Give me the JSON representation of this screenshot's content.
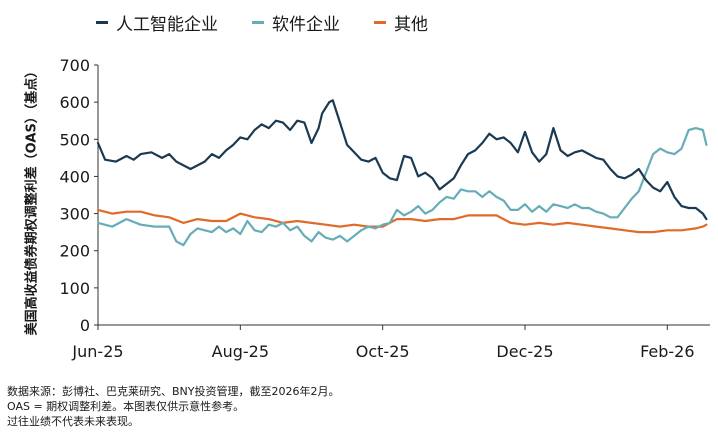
{
  "chart_data": {
    "type": "line",
    "ylabel": "美国高收益债券期权调整利差（OAS）（基点）",
    "ylim": [
      0,
      700
    ],
    "yticks": [
      0,
      100,
      200,
      300,
      400,
      500,
      600,
      700
    ],
    "xticks": [
      "Jun-25",
      "Aug-25",
      "Oct-25",
      "Dec-25",
      "Feb-26"
    ],
    "xtick_positions": [
      0,
      2,
      4,
      6,
      8
    ],
    "xlim": [
      0,
      8.6
    ],
    "grid": false,
    "legend_position": "top",
    "series": [
      {
        "name": "人工智能企业",
        "color": "#1b3a52",
        "x": [
          0,
          0.1,
          0.25,
          0.4,
          0.5,
          0.6,
          0.75,
          0.9,
          1.0,
          1.1,
          1.3,
          1.5,
          1.6,
          1.7,
          1.8,
          1.9,
          2.0,
          2.1,
          2.2,
          2.3,
          2.4,
          2.5,
          2.6,
          2.7,
          2.8,
          2.9,
          3.0,
          3.1,
          3.15,
          3.25,
          3.3,
          3.4,
          3.5,
          3.6,
          3.7,
          3.8,
          3.9,
          4.0,
          4.1,
          4.2,
          4.3,
          4.4,
          4.5,
          4.6,
          4.7,
          4.8,
          4.9,
          5.0,
          5.1,
          5.2,
          5.3,
          5.4,
          5.5,
          5.6,
          5.7,
          5.8,
          5.9,
          6.0,
          6.1,
          6.2,
          6.3,
          6.4,
          6.5,
          6.6,
          6.7,
          6.8,
          6.9,
          7.0,
          7.1,
          7.2,
          7.3,
          7.4,
          7.5,
          7.6,
          7.7,
          7.8,
          7.9,
          8.0,
          8.1,
          8.2,
          8.3,
          8.4,
          8.5,
          8.55
        ],
        "values": [
          490,
          445,
          440,
          455,
          445,
          460,
          465,
          450,
          460,
          440,
          420,
          440,
          460,
          450,
          470,
          485,
          505,
          500,
          525,
          540,
          530,
          550,
          545,
          525,
          550,
          545,
          490,
          530,
          570,
          600,
          605,
          545,
          485,
          465,
          445,
          440,
          450,
          410,
          395,
          390,
          455,
          450,
          400,
          410,
          395,
          365,
          380,
          395,
          430,
          460,
          470,
          490,
          515,
          500,
          505,
          490,
          465,
          520,
          465,
          440,
          460,
          530,
          470,
          455,
          465,
          470,
          460,
          450,
          445,
          420,
          400,
          395,
          405,
          420,
          390,
          370,
          360,
          385,
          345,
          320,
          315,
          315,
          300,
          285
        ]
      },
      {
        "name": "软件企业",
        "color": "#66adb8",
        "x": [
          0,
          0.2,
          0.4,
          0.6,
          0.8,
          1.0,
          1.1,
          1.2,
          1.3,
          1.4,
          1.5,
          1.6,
          1.7,
          1.8,
          1.9,
          2.0,
          2.1,
          2.2,
          2.3,
          2.4,
          2.5,
          2.6,
          2.7,
          2.8,
          2.9,
          3.0,
          3.1,
          3.2,
          3.3,
          3.4,
          3.5,
          3.6,
          3.7,
          3.8,
          3.9,
          4.0,
          4.1,
          4.2,
          4.3,
          4.4,
          4.5,
          4.6,
          4.7,
          4.8,
          4.9,
          5.0,
          5.1,
          5.2,
          5.3,
          5.4,
          5.5,
          5.6,
          5.7,
          5.8,
          5.9,
          6.0,
          6.1,
          6.2,
          6.3,
          6.4,
          6.5,
          6.6,
          6.7,
          6.8,
          6.9,
          7.0,
          7.1,
          7.2,
          7.3,
          7.4,
          7.5,
          7.6,
          7.7,
          7.8,
          7.9,
          8.0,
          8.1,
          8.2,
          8.3,
          8.4,
          8.5,
          8.55
        ],
        "values": [
          275,
          265,
          285,
          270,
          265,
          265,
          225,
          215,
          245,
          260,
          255,
          250,
          265,
          250,
          260,
          245,
          280,
          255,
          250,
          270,
          265,
          275,
          255,
          265,
          240,
          225,
          250,
          235,
          230,
          240,
          225,
          240,
          255,
          265,
          260,
          270,
          275,
          310,
          295,
          305,
          320,
          300,
          310,
          330,
          345,
          340,
          365,
          360,
          360,
          345,
          360,
          345,
          335,
          310,
          310,
          325,
          305,
          320,
          305,
          325,
          320,
          315,
          325,
          315,
          315,
          305,
          300,
          290,
          290,
          315,
          340,
          360,
          410,
          460,
          475,
          465,
          460,
          475,
          525,
          530,
          525,
          485
        ]
      },
      {
        "name": "其他",
        "color": "#e06a2a",
        "x": [
          0,
          0.2,
          0.4,
          0.6,
          0.8,
          1.0,
          1.2,
          1.4,
          1.6,
          1.8,
          2.0,
          2.2,
          2.4,
          2.6,
          2.8,
          3.0,
          3.2,
          3.4,
          3.6,
          3.8,
          4.0,
          4.2,
          4.4,
          4.6,
          4.8,
          5.0,
          5.2,
          5.4,
          5.6,
          5.8,
          6.0,
          6.2,
          6.4,
          6.6,
          6.8,
          7.0,
          7.2,
          7.4,
          7.6,
          7.8,
          8.0,
          8.2,
          8.4,
          8.5,
          8.55
        ],
        "values": [
          310,
          300,
          305,
          305,
          295,
          290,
          275,
          285,
          280,
          280,
          300,
          290,
          285,
          275,
          280,
          275,
          270,
          265,
          270,
          265,
          265,
          285,
          285,
          280,
          285,
          285,
          295,
          295,
          295,
          275,
          270,
          275,
          270,
          275,
          270,
          265,
          260,
          255,
          250,
          250,
          255,
          255,
          260,
          265,
          270
        ]
      }
    ]
  },
  "notes": {
    "line1": "数据来源：彭博社、巴克莱研究、BNY投资管理，截至2026年2月。",
    "line2": "OAS = 期权调整利差。本图表仅供示意性参考。",
    "line3": "过往业绩不代表未来表现。"
  }
}
